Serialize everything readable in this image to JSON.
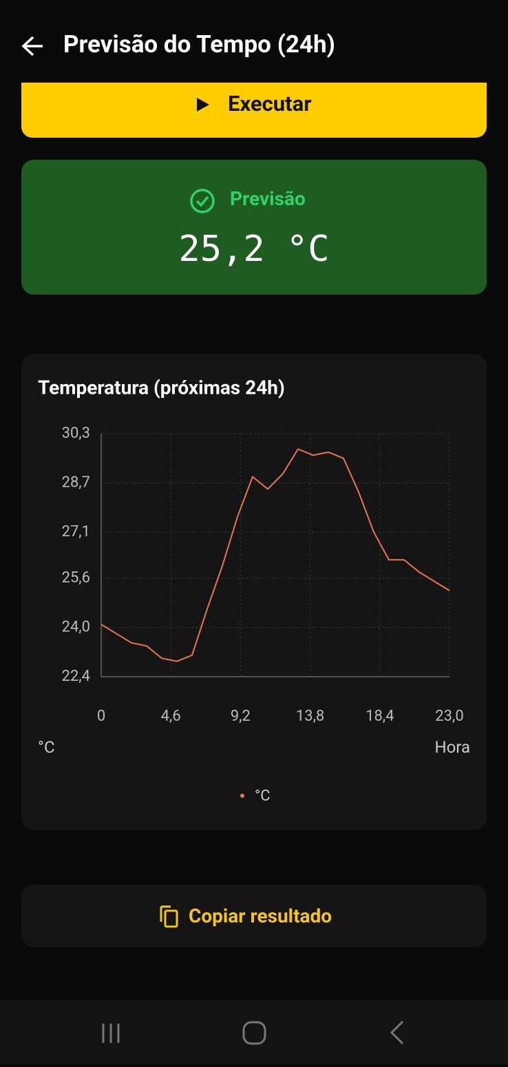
{
  "header": {
    "title": "Previsão do Tempo (24h)"
  },
  "run_button": {
    "label": "Executar"
  },
  "result": {
    "label": "Previsão",
    "value": "25,2 °C"
  },
  "chart_data": {
    "type": "line",
    "title": "Temperatura (próximas 24h)",
    "x": [
      0,
      1,
      2,
      3,
      4,
      5,
      6,
      7,
      8,
      9,
      10,
      11,
      12,
      13,
      14,
      15,
      16,
      17,
      18,
      19,
      20,
      21,
      22,
      23
    ],
    "series": [
      {
        "name": "°C",
        "color": "#ec7551",
        "values": [
          24.1,
          23.8,
          23.5,
          23.4,
          23.0,
          22.9,
          23.1,
          24.6,
          26.0,
          27.6,
          28.9,
          28.5,
          29.0,
          29.8,
          29.6,
          29.7,
          29.5,
          28.4,
          27.1,
          26.2,
          26.2,
          25.8,
          25.5,
          25.2
        ]
      }
    ],
    "xlim": [
      0,
      23
    ],
    "xticks": [
      0,
      {
        "value": 4.6,
        "label": "4,6"
      },
      {
        "value": 9.2,
        "label": "9,2"
      },
      {
        "value": 13.8,
        "label": "13,8"
      },
      {
        "value": 18.4,
        "label": "18,4"
      },
      {
        "value": 23.0,
        "label": "23,0"
      }
    ],
    "ylim": [
      22.4,
      30.3
    ],
    "yticks": [
      {
        "value": 22.4,
        "label": "22,4"
      },
      {
        "value": 24.0,
        "label": "24,0"
      },
      {
        "value": 25.6,
        "label": "25,6"
      },
      {
        "value": 27.1,
        "label": "27,1"
      },
      {
        "value": 28.7,
        "label": "28,7"
      },
      {
        "value": 30.3,
        "label": "30,3"
      }
    ],
    "y_label": "°C",
    "x_label": "Hora",
    "grid": true,
    "legend": "bottom"
  },
  "copy_button": {
    "label": "Copiar resultado"
  }
}
